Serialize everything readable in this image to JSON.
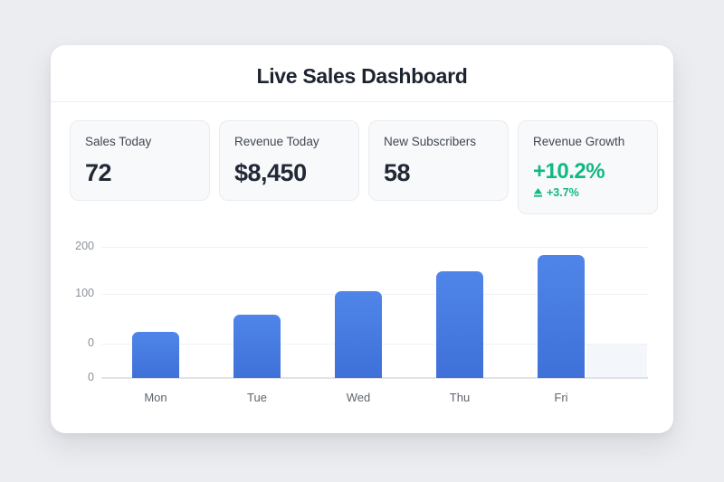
{
  "page": {
    "background": "#ecedf1"
  },
  "header": {
    "title": "Live Sales Dashboard"
  },
  "stats": {
    "items": [
      {
        "label": "Sales Today",
        "value": "72"
      },
      {
        "label": "Revenue Today",
        "value": "$8,450"
      },
      {
        "label": "New Subscribers",
        "value": "58"
      },
      {
        "label": "Revenue Growth",
        "value": "+10.2%",
        "sub": "+3.7%",
        "icon": "trend-up-icon",
        "accent": "#10b981"
      }
    ]
  },
  "chart_data": {
    "type": "bar",
    "categories": [
      "Mon",
      "Tue",
      "Wed",
      "Thu",
      "Fri"
    ],
    "values": [
      25,
      60,
      110,
      150,
      185
    ],
    "yticks": [
      "200",
      "100",
      "0",
      "0"
    ],
    "ylim": [
      0,
      200
    ],
    "grid": true,
    "legend": false,
    "bar_color": "#4a7de2",
    "title": "",
    "xlabel": "",
    "ylabel": ""
  },
  "colors": {
    "accent_green": "#10b981",
    "bar_blue": "#4a7de2",
    "card_background": "#ffffff",
    "stat_card_background": "#f8f9fb",
    "page_background": "#ecedf1"
  }
}
